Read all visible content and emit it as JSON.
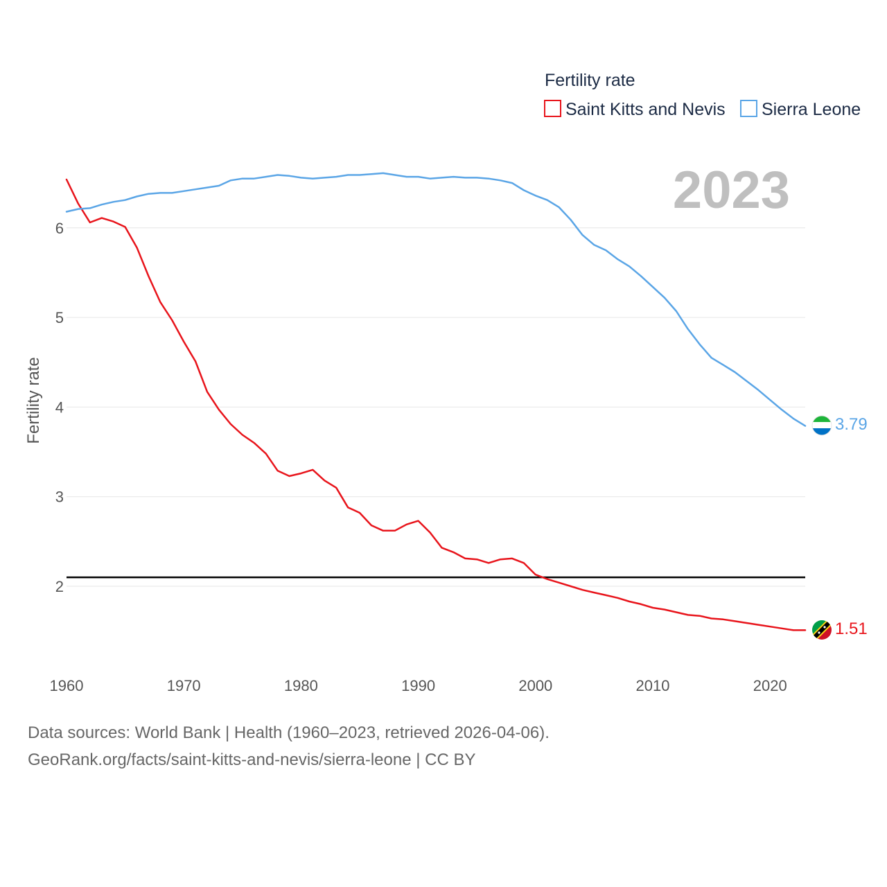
{
  "footer": {
    "line1": "Data sources: World Bank | Health (1960–2023, retrieved 2026-04-06).",
    "line2": "GeoRank.org/facts/saint-kitts-and-nevis/sierra-leone | CC BY"
  },
  "chart_data": {
    "type": "line",
    "title": "",
    "year_label": "2023",
    "xlabel": "",
    "ylabel": "Fertility rate",
    "legend_title": "Fertility rate",
    "legend_position": "top-right",
    "grid": true,
    "xlim": [
      1960,
      2023
    ],
    "ylim": [
      1.0,
      7.0
    ],
    "x_ticks": [
      1960,
      1970,
      1980,
      1990,
      2000,
      2010,
      2020
    ],
    "y_ticks": [
      2,
      3,
      4,
      5,
      6
    ],
    "reference_line": 2.1,
    "x": [
      1960,
      1961,
      1962,
      1963,
      1964,
      1965,
      1966,
      1967,
      1968,
      1969,
      1970,
      1971,
      1972,
      1973,
      1974,
      1975,
      1976,
      1977,
      1978,
      1979,
      1980,
      1981,
      1982,
      1983,
      1984,
      1985,
      1986,
      1987,
      1988,
      1989,
      1990,
      1991,
      1992,
      1993,
      1994,
      1995,
      1996,
      1997,
      1998,
      1999,
      2000,
      2001,
      2002,
      2003,
      2004,
      2005,
      2006,
      2007,
      2008,
      2009,
      2010,
      2011,
      2012,
      2013,
      2014,
      2015,
      2016,
      2017,
      2018,
      2019,
      2020,
      2021,
      2022,
      2023
    ],
    "series": [
      {
        "name": "Saint Kitts and Nevis",
        "color": "#e8141b",
        "end_label": "1.51",
        "values": [
          6.54,
          6.27,
          6.06,
          6.11,
          6.07,
          6.01,
          5.78,
          5.46,
          5.17,
          4.97,
          4.73,
          4.51,
          4.17,
          3.97,
          3.81,
          3.69,
          3.6,
          3.48,
          3.29,
          3.23,
          3.26,
          3.3,
          3.18,
          3.1,
          2.88,
          2.82,
          2.68,
          2.62,
          2.62,
          2.69,
          2.73,
          2.6,
          2.43,
          2.38,
          2.31,
          2.3,
          2.26,
          2.3,
          2.31,
          2.26,
          2.13,
          2.08,
          2.04,
          2.0,
          1.96,
          1.93,
          1.9,
          1.87,
          1.83,
          1.8,
          1.76,
          1.74,
          1.71,
          1.68,
          1.67,
          1.64,
          1.63,
          1.61,
          1.59,
          1.57,
          1.55,
          1.53,
          1.51,
          1.51
        ]
      },
      {
        "name": "Sierra Leone",
        "color": "#5aa5e6",
        "end_label": "3.79",
        "values": [
          6.18,
          6.21,
          6.22,
          6.26,
          6.29,
          6.31,
          6.35,
          6.38,
          6.39,
          6.39,
          6.41,
          6.43,
          6.45,
          6.47,
          6.53,
          6.55,
          6.55,
          6.57,
          6.59,
          6.58,
          6.56,
          6.55,
          6.56,
          6.57,
          6.59,
          6.59,
          6.6,
          6.61,
          6.59,
          6.57,
          6.57,
          6.55,
          6.56,
          6.57,
          6.56,
          6.56,
          6.55,
          6.53,
          6.5,
          6.42,
          6.36,
          6.31,
          6.23,
          6.09,
          5.92,
          5.81,
          5.75,
          5.65,
          5.57,
          5.46,
          5.34,
          5.22,
          5.07,
          4.87,
          4.7,
          4.55,
          4.47,
          4.39,
          4.29,
          4.19,
          4.08,
          3.97,
          3.87,
          3.79
        ]
      }
    ]
  }
}
